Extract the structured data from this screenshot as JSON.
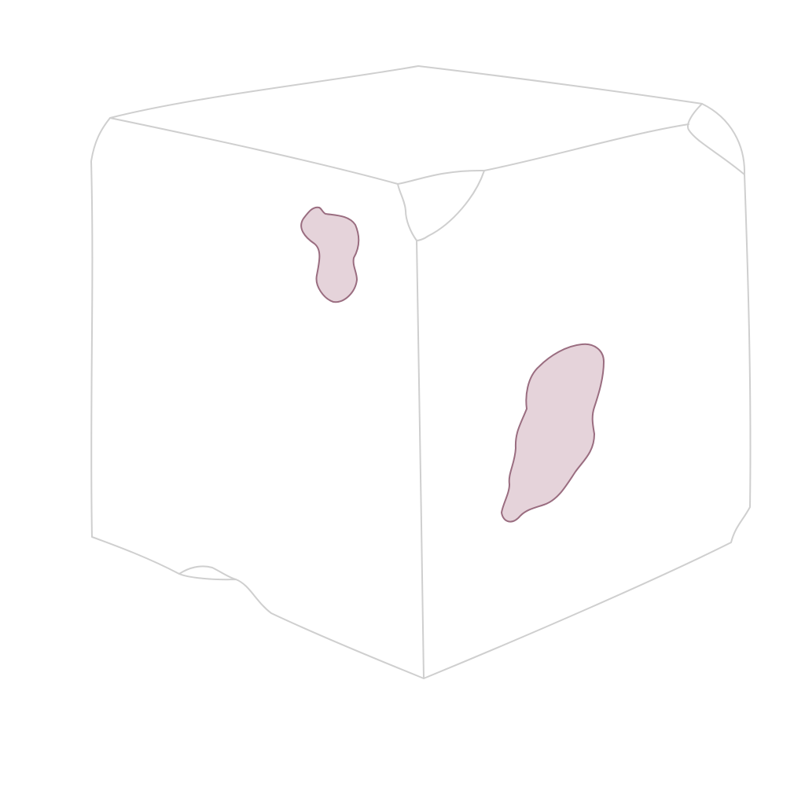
{
  "figure": {
    "subject": "irregular-cube-block",
    "outline_color": "#cfcfcf",
    "background_color": "#ffffff"
  },
  "markings": [
    {
      "id": "spot-left-face",
      "face": "left",
      "fill": "#e5d3da",
      "stroke": "#9a6d80"
    },
    {
      "id": "spot-right-face",
      "face": "right",
      "fill": "#e5d3da",
      "stroke": "#9a6d80"
    }
  ]
}
